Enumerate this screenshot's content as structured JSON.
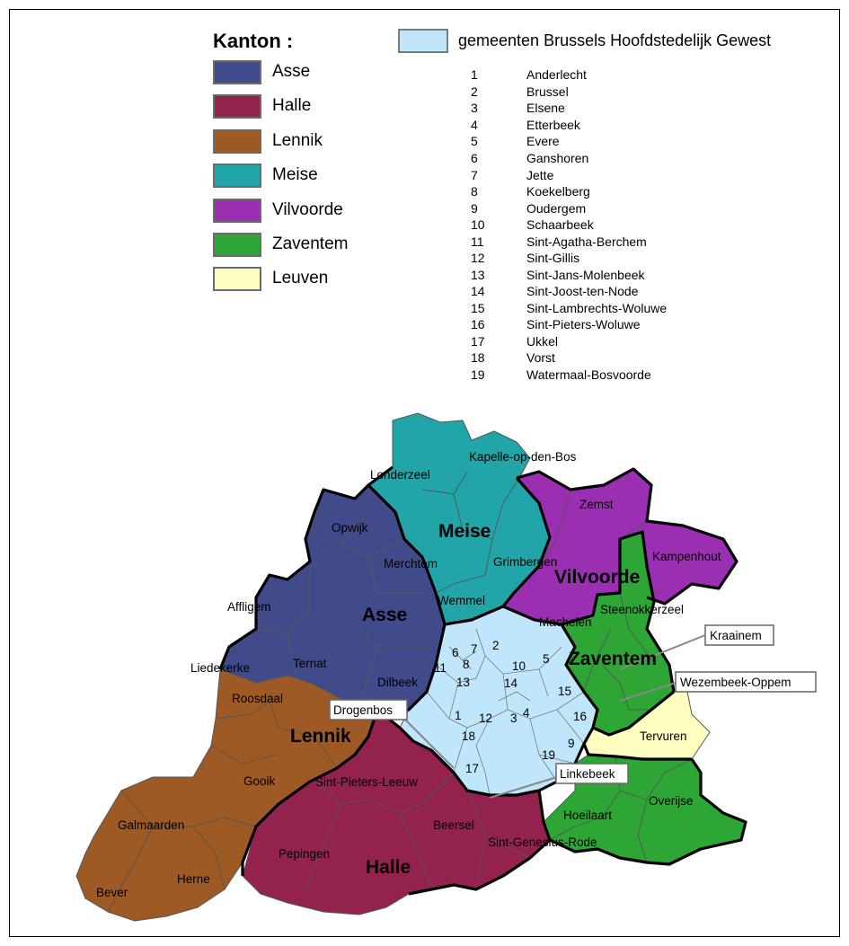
{
  "legend": {
    "title": "Kanton :",
    "kantons": [
      {
        "label": "Asse",
        "color": "#414a8a"
      },
      {
        "label": "Halle",
        "color": "#94224f"
      },
      {
        "label": "Lennik",
        "color": "#9d5a24"
      },
      {
        "label": "Meise",
        "color": "#22a5a8"
      },
      {
        "label": "Vilvoorde",
        "color": "#9b2fb1"
      },
      {
        "label": "Zaventem",
        "color": "#2ea636"
      },
      {
        "label": "Leuven",
        "color": "#ffffc2"
      }
    ],
    "brussels": {
      "label": "gemeenten Brussels Hoofdstedelijk Gewest",
      "color": "#bfe6fa"
    }
  },
  "gemeenten": [
    {
      "num": "1",
      "name": "Anderlecht"
    },
    {
      "num": "2",
      "name": "Brussel"
    },
    {
      "num": "3",
      "name": "Elsene"
    },
    {
      "num": "4",
      "name": "Etterbeek"
    },
    {
      "num": "5",
      "name": "Evere"
    },
    {
      "num": "6",
      "name": "Ganshoren"
    },
    {
      "num": "7",
      "name": "Jette"
    },
    {
      "num": "8",
      "name": "Koekelberg"
    },
    {
      "num": "9",
      "name": "Oudergem"
    },
    {
      "num": "10",
      "name": "Schaarbeek"
    },
    {
      "num": "11",
      "name": "Sint-Agatha-Berchem"
    },
    {
      "num": "12",
      "name": "Sint-Gillis"
    },
    {
      "num": "13",
      "name": "Sint-Jans-Molenbeek"
    },
    {
      "num": "14",
      "name": "Sint-Joost-ten-Node"
    },
    {
      "num": "15",
      "name": "Sint-Lambrechts-Woluwe"
    },
    {
      "num": "16",
      "name": "Sint-Pieters-Woluwe"
    },
    {
      "num": "17",
      "name": "Ukkel"
    },
    {
      "num": "18",
      "name": "Vorst"
    },
    {
      "num": "19",
      "name": "Watermaal-Bosvoorde"
    }
  ],
  "map": {
    "canton_labels": {
      "meise": "Meise",
      "vilvoorde": "Vilvoorde",
      "asse": "Asse",
      "zaventem": "Zaventem",
      "lennik": "Lennik",
      "halle": "Halle"
    },
    "municipalities": {
      "londerzeel": "Londerzeel",
      "kapelle": "Kapelle-op-den-Bos",
      "zemst": "Zemst",
      "opwijk": "Opwijk",
      "merchtem": "Merchtem",
      "grimbergen": "Grimbergen",
      "kampenhout": "Kampenhout",
      "affligem": "Affligem",
      "wemmel": "Wemmel",
      "steenokkerzeel": "Steenokkerzeel",
      "machelen": "Machelen",
      "liedekerke": "Liedekerke",
      "ternat": "Ternat",
      "dilbeek": "Dilbeek",
      "roosdaal": "Roosdaal",
      "tervuren": "Tervuren",
      "gooik": "Gooik",
      "sint_pieters_leeuw": "Sint-Pieters-Leeuw",
      "overijse": "Overijse",
      "hoeilaart": "Hoeilaart",
      "galmaarden": "Galmaarden",
      "beersel": "Beersel",
      "pepingen": "Pepingen",
      "sint_genesius_rode": "Sint-Genesius-Rode",
      "herne": "Herne",
      "bever": "Bever"
    },
    "callouts": {
      "kraainem": "Kraainem",
      "wezembeek": "Wezembeek-Oppem",
      "drogenbos": "Drogenbos",
      "linkebeek": "Linkebeek"
    },
    "numbers": [
      "1",
      "2",
      "3",
      "4",
      "5",
      "6",
      "7",
      "8",
      "9",
      "10",
      "11",
      "12",
      "13",
      "14",
      "15",
      "16",
      "17",
      "18",
      "19"
    ]
  }
}
